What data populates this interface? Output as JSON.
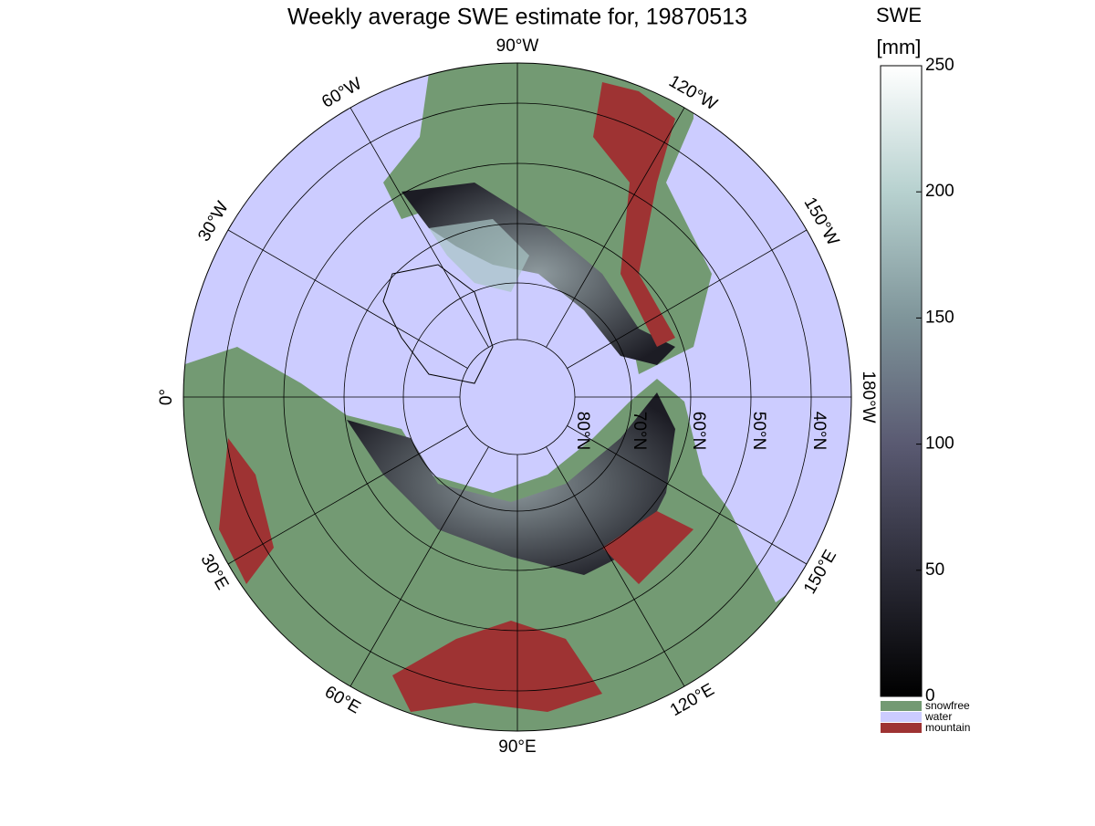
{
  "map": {
    "title": "Weekly average SWE estimate for, 19870513",
    "meridian_labels": [
      "90°W",
      "120°W",
      "150°W",
      "180°W",
      "150°E",
      "120°E",
      "90°E",
      "60°E",
      "30°E",
      "0°",
      "30°W",
      "60°W"
    ],
    "parallel_labels": [
      "80°N",
      "70°N",
      "60°N",
      "50°N",
      "40°N"
    ],
    "colorbar": {
      "label": "SWE",
      "unit": "[mm]",
      "lim": [
        0,
        250
      ],
      "ticks": [
        0,
        50,
        100,
        150,
        200,
        250
      ]
    },
    "legend": [
      {
        "name": "snowfree",
        "color": "#739a73"
      },
      {
        "name": "water",
        "color": "#ccccff"
      },
      {
        "name": "mountain",
        "color": "#9e3333"
      }
    ]
  }
}
